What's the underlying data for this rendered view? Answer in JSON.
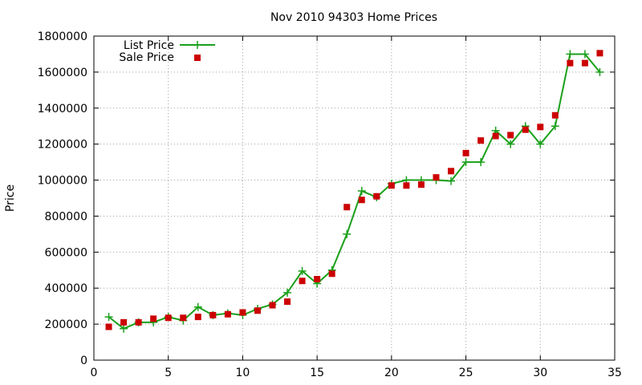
{
  "chart_data": {
    "type": "line",
    "title": "Nov 2010 94303 Home Prices",
    "xlabel": "",
    "ylabel": "Price",
    "xlim": [
      0,
      35
    ],
    "ylim": [
      0,
      1800000
    ],
    "xticks": [
      "0",
      "5",
      "10",
      "15",
      "20",
      "25",
      "30",
      "35"
    ],
    "yticks": [
      "0",
      "200000",
      "400000",
      "600000",
      "800000",
      "1000000",
      "1200000",
      "1400000",
      "1600000",
      "1800000"
    ],
    "grid": true,
    "legend_position": "top-left",
    "series": [
      {
        "name": "List Price",
        "style": "lines+points",
        "color": "#1aa01a",
        "x": [
          1,
          2,
          3,
          4,
          5,
          6,
          7,
          8,
          9,
          10,
          11,
          12,
          13,
          14,
          15,
          16,
          17,
          18,
          19,
          20,
          21,
          22,
          23,
          24,
          25,
          26,
          27,
          28,
          29,
          30,
          31,
          32,
          33,
          34
        ],
        "y": [
          240000,
          175000,
          210000,
          210000,
          240000,
          220000,
          295000,
          250000,
          260000,
          250000,
          285000,
          310000,
          375000,
          495000,
          425000,
          500000,
          700000,
          940000,
          905000,
          980000,
          1000000,
          1000000,
          1000000,
          995000,
          1100000,
          1100000,
          1275000,
          1200000,
          1300000,
          1200000,
          1300000,
          1700000,
          1700000,
          1600000
        ]
      },
      {
        "name": "Sale Price",
        "style": "points",
        "color": "#cc0000",
        "x": [
          1,
          2,
          3,
          4,
          5,
          6,
          7,
          8,
          9,
          10,
          11,
          12,
          13,
          14,
          15,
          16,
          17,
          18,
          19,
          20,
          21,
          22,
          23,
          24,
          25,
          26,
          27,
          28,
          29,
          30,
          31,
          32,
          33,
          34
        ],
        "y": [
          185000,
          210000,
          210000,
          230000,
          235000,
          235000,
          240000,
          250000,
          255000,
          265000,
          275000,
          305000,
          325000,
          440000,
          450000,
          480000,
          850000,
          890000,
          910000,
          970000,
          970000,
          975000,
          1015000,
          1050000,
          1150000,
          1220000,
          1245000,
          1250000,
          1280000,
          1295000,
          1360000,
          1650000,
          1650000,
          1705000
        ]
      }
    ]
  }
}
